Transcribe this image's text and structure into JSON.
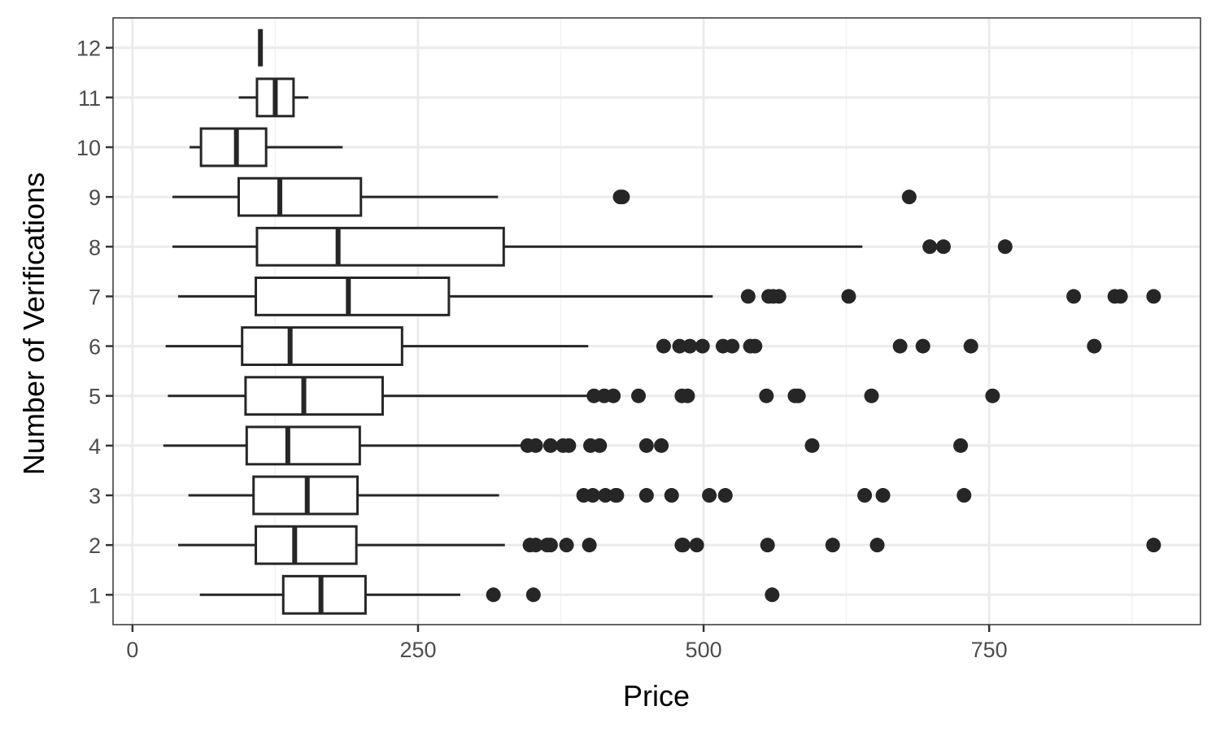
{
  "chart_data": {
    "type": "boxplot",
    "orientation": "horizontal",
    "title": "",
    "xlabel": "Price",
    "ylabel": "Number of Verifications",
    "xlim": [
      -17,
      935
    ],
    "x_ticks": [
      0,
      250,
      500,
      750
    ],
    "x_tick_labels": [
      "0",
      "250",
      "500",
      "750"
    ],
    "grid": true,
    "colors": {
      "box_stroke": "#262626",
      "grid_major": "#ebebeb",
      "grid_minor": "#f2f2f2",
      "panel_border": "#333333",
      "point_fill": "#262626"
    },
    "categories": [
      "1",
      "2",
      "3",
      "4",
      "5",
      "6",
      "7",
      "8",
      "9",
      "10",
      "11",
      "12"
    ],
    "boxes": [
      {
        "category": "1",
        "whisker_low": 59,
        "q1": 132,
        "median": 165,
        "q3": 204,
        "whisker_high": 287,
        "outliers": [
          316,
          351,
          560
        ]
      },
      {
        "category": "2",
        "whisker_low": 40,
        "q1": 108,
        "median": 142,
        "q3": 196,
        "whisker_high": 326,
        "outliers": [
          348,
          353,
          363,
          366,
          380,
          400,
          481,
          482,
          494,
          556,
          613,
          652,
          894
        ]
      },
      {
        "category": "3",
        "whisker_low": 49,
        "q1": 106,
        "median": 153,
        "q3": 197,
        "whisker_high": 321,
        "outliers": [
          395,
          403,
          414,
          423,
          424,
          450,
          472,
          505,
          519,
          641,
          657,
          728
        ]
      },
      {
        "category": "4",
        "whisker_low": 27,
        "q1": 100,
        "median": 136,
        "q3": 199,
        "whisker_high": 347,
        "outliers": [
          346,
          353,
          366,
          377,
          382,
          401,
          409,
          450,
          463,
          595,
          725
        ]
      },
      {
        "category": "5",
        "whisker_low": 31,
        "q1": 99,
        "median": 150,
        "q3": 219,
        "whisker_high": 398,
        "outliers": [
          404,
          413,
          421,
          443,
          481,
          486,
          555,
          580,
          583,
          647,
          753
        ]
      },
      {
        "category": "6",
        "whisker_low": 29,
        "q1": 96,
        "median": 138,
        "q3": 236,
        "whisker_high": 399,
        "outliers": [
          465,
          479,
          488,
          499,
          517,
          525,
          541,
          545,
          672,
          692,
          734,
          842
        ]
      },
      {
        "category": "7",
        "whisker_low": 40,
        "q1": 108,
        "median": 189,
        "q3": 277,
        "whisker_high": 508,
        "outliers": [
          539,
          557,
          561,
          566,
          627,
          824,
          860,
          865,
          894
        ]
      },
      {
        "category": "8",
        "whisker_low": 35,
        "q1": 109,
        "median": 180,
        "q3": 325,
        "whisker_high": 639,
        "outliers": [
          698,
          710,
          764
        ]
      },
      {
        "category": "9",
        "whisker_low": 35,
        "q1": 93,
        "median": 129,
        "q3": 200,
        "whisker_high": 320,
        "outliers": [
          427,
          429,
          680
        ]
      },
      {
        "category": "10",
        "whisker_low": 50,
        "q1": 60,
        "median": 91,
        "q3": 117,
        "whisker_high": 184,
        "outliers": []
      },
      {
        "category": "11",
        "whisker_low": 93,
        "q1": 109,
        "median": 125,
        "q3": 141,
        "whisker_high": 154,
        "outliers": []
      },
      {
        "category": "12",
        "whisker_low": 112,
        "q1": 112,
        "median": 112,
        "q3": 112,
        "whisker_high": 112,
        "outliers": []
      }
    ]
  }
}
